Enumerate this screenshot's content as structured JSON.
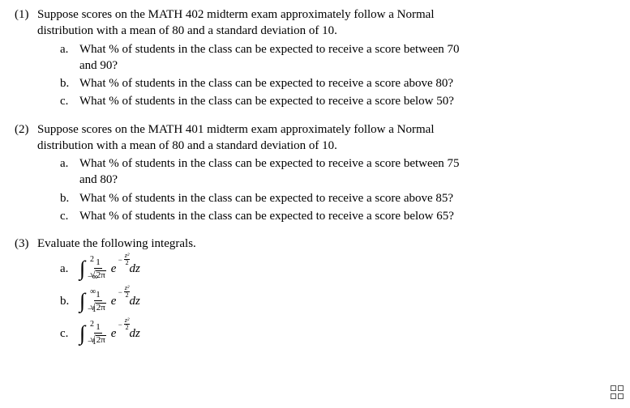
{
  "problems": [
    {
      "num": "(1)",
      "intro_l1": "Suppose scores on the MATH 402 midterm exam approximately follow a Normal",
      "intro_l2": "distribution with a mean of 80 and a standard deviation of 10.",
      "subs": [
        {
          "letter": "a.",
          "l1": "What % of students in the class can be expected to receive a score between 70",
          "l2": "and 90?"
        },
        {
          "letter": "b.",
          "l1": "What % of students in the class can be expected to receive a score above 80?"
        },
        {
          "letter": "c.",
          "l1": "What % of students in the class can be expected to receive a score below 50?"
        }
      ]
    },
    {
      "num": "(2)",
      "intro_l1": "Suppose scores on the MATH 401 midterm exam approximately follow a Normal",
      "intro_l2": "distribution with a mean of 80 and a standard deviation of 10.",
      "subs": [
        {
          "letter": "a.",
          "l1": "What % of students in the class can be expected to receive a score between 75",
          "l2": "and 80?"
        },
        {
          "letter": "b.",
          "l1": "What % of students in the class can be expected to receive a score above 85?"
        },
        {
          "letter": "c.",
          "l1": "What % of students in the class can be expected to receive a score below 65?"
        }
      ]
    }
  ],
  "p3": {
    "num": "(3)",
    "intro": "Evaluate the following integrals.",
    "items": [
      {
        "letter": "a.",
        "lower": "−∞",
        "upper": "2"
      },
      {
        "letter": "b.",
        "lower": "−1",
        "upper": "∞"
      },
      {
        "letter": "c.",
        "lower": "−1",
        "upper": "2"
      }
    ],
    "frac_num": "1",
    "sqrt_arg": "2π",
    "e": "e",
    "neg": "−",
    "z2": "z²",
    "two": "2",
    "dz": "dz"
  }
}
